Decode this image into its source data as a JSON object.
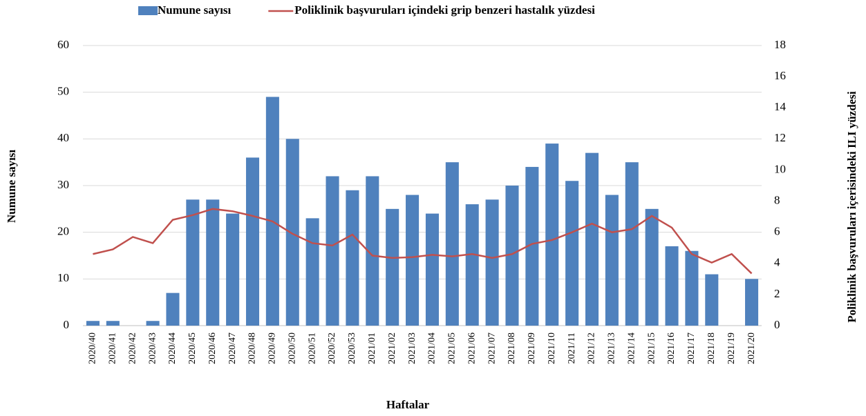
{
  "chart_data": {
    "type": "bar-line",
    "x_label": "Haftalar",
    "y_label": "Numune sayısı",
    "y2_label": "Poliklinik başvuruları içerisindeki ILI yüzdesi",
    "categories": [
      "2020/40",
      "2020/41",
      "2020/42",
      "2020/43",
      "2020/44",
      "2020/45",
      "2020/46",
      "2020/47",
      "2020/48",
      "2020/49",
      "2020/50",
      "2020/51",
      "2020/52",
      "2020/53",
      "2021/01",
      "2021/02",
      "2021/03",
      "2021/04",
      "2021/05",
      "2021/06",
      "2021/07",
      "2021/08",
      "2021/09",
      "2021/10",
      "2021/11",
      "2021/12",
      "2021/13",
      "2021/14",
      "2021/15",
      "2021/16",
      "2021/17",
      "2021/18",
      "2021/19",
      "2021/20"
    ],
    "series": [
      {
        "name": "Numune sayısı",
        "type": "bar",
        "color": "#4f81bd",
        "values": [
          1,
          1,
          0,
          1,
          7,
          27,
          27,
          24,
          36,
          49,
          40,
          23,
          32,
          29,
          32,
          25,
          28,
          24,
          35,
          26,
          27,
          30,
          34,
          39,
          31,
          37,
          28,
          35,
          25,
          17,
          16,
          11,
          0,
          10
        ]
      },
      {
        "name": "Poliklinik başvuruları içindeki grip benzeri hastalık yüzdesi",
        "type": "line",
        "axis": "y2",
        "color": "#c0504d",
        "values": [
          4.6,
          4.9,
          5.7,
          5.3,
          6.8,
          7.1,
          7.5,
          7.35,
          7.05,
          6.7,
          5.9,
          5.3,
          5.15,
          5.85,
          4.5,
          4.35,
          4.4,
          4.55,
          4.45,
          4.6,
          4.35,
          4.6,
          5.25,
          5.5,
          6.0,
          6.55,
          6.0,
          6.2,
          7.05,
          6.3,
          4.6,
          4.05,
          4.6,
          3.35
        ]
      }
    ],
    "ylim": [
      0,
      60
    ],
    "yticks": [
      0,
      10,
      20,
      30,
      40,
      50,
      60
    ],
    "y2lim": [
      0,
      18
    ],
    "y2ticks": [
      0,
      2,
      4,
      6,
      8,
      10,
      12,
      14,
      16,
      18
    ],
    "grid": true
  }
}
